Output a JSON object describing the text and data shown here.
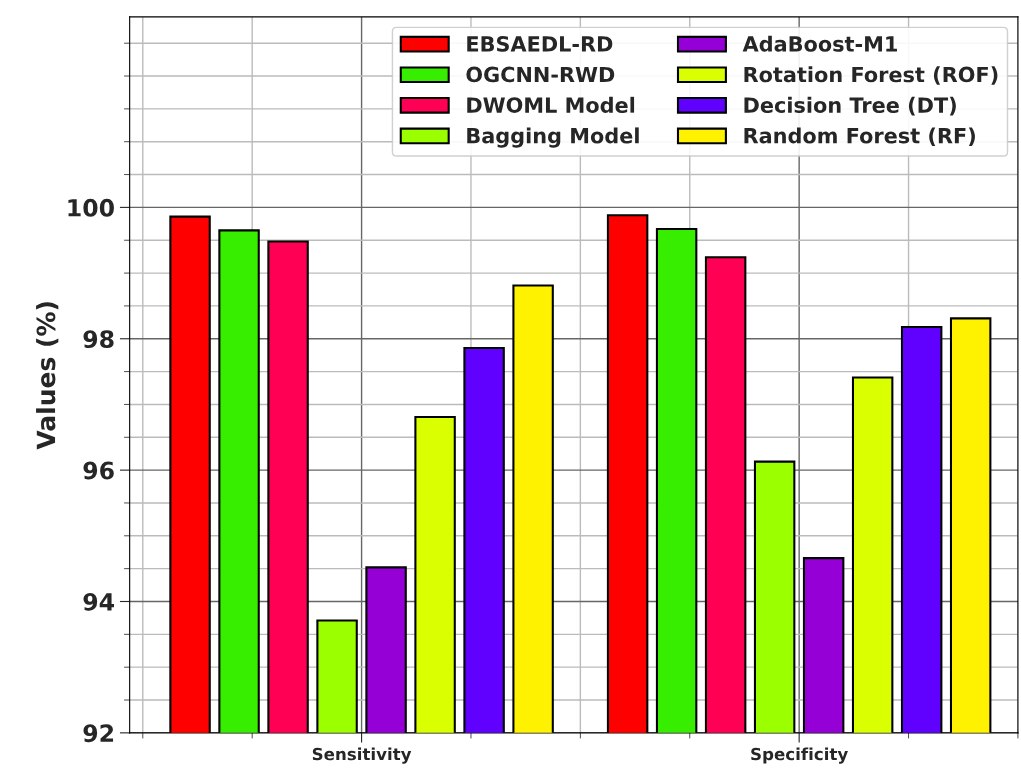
{
  "chart_data": {
    "type": "bar",
    "ylabel": "Values (%)",
    "categories": [
      "Sensitivity",
      "Specificity"
    ],
    "series": [
      {
        "name": "EBSAEDL-RD",
        "color": "#ff0000",
        "values": [
          99.86,
          99.88
        ]
      },
      {
        "name": "OGCNN-RWD",
        "color": "#38ee00",
        "values": [
          99.65,
          99.67
        ]
      },
      {
        "name": "DWOML Model",
        "color": "#ff0055",
        "values": [
          99.48,
          99.24
        ]
      },
      {
        "name": "Bagging Model",
        "color": "#9cff00",
        "values": [
          93.71,
          96.13
        ]
      },
      {
        "name": "AdaBoost-M1",
        "color": "#9400d6",
        "values": [
          94.52,
          94.66
        ]
      },
      {
        "name": "Rotation Forest (ROF)",
        "color": "#d9ff00",
        "values": [
          96.81,
          97.41
        ]
      },
      {
        "name": "Decision Tree (DT)",
        "color": "#6000ff",
        "values": [
          97.86,
          98.18
        ]
      },
      {
        "name": "Random Forest (RF)",
        "color": "#fff200",
        "values": [
          98.81,
          98.31
        ]
      }
    ],
    "ylim": [
      92,
      102.9
    ],
    "yticks": [
      92,
      94,
      96,
      98,
      100
    ],
    "grid": true,
    "legend": "top right"
  }
}
